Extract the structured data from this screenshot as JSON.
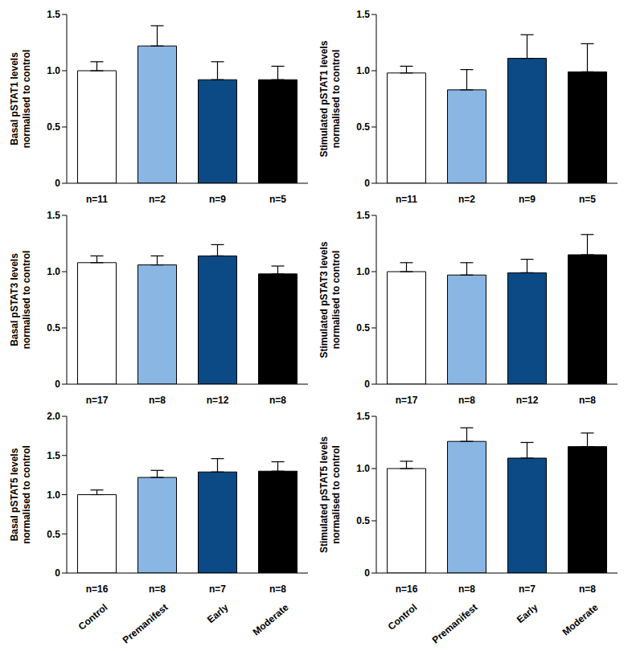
{
  "chart_data": [
    {
      "type": "bar",
      "y_label": [
        "Basal pSTAT1 levels",
        "normalised to control"
      ],
      "categories": [
        "n=11",
        "n=2",
        "n=9",
        "n=5"
      ],
      "values": [
        1.0,
        1.22,
        0.92,
        0.92
      ],
      "errors": [
        0.08,
        0.18,
        0.16,
        0.12
      ],
      "colors": [
        "#ffffff",
        "#8ab6e3",
        "#0b4a84",
        "#000000"
      ],
      "ylim": [
        0,
        1.5
      ],
      "yticks": [
        0,
        0.5,
        {
          "value": 1,
          "label": "1.0"
        },
        1.5
      ]
    },
    {
      "type": "bar",
      "y_label": [
        "Stimulated pSTAT1 levels",
        "normalised to control"
      ],
      "categories": [
        "n=11",
        "n=2",
        "n=9",
        "n=5"
      ],
      "values": [
        0.98,
        0.83,
        1.11,
        0.99
      ],
      "errors": [
        0.06,
        0.18,
        0.21,
        0.25
      ],
      "colors": [
        "#ffffff",
        "#8ab6e3",
        "#0b4a84",
        "#000000"
      ],
      "ylim": [
        0,
        1.5
      ],
      "yticks": [
        0,
        0.5,
        {
          "value": 1,
          "label": "1.0"
        },
        1.5
      ]
    },
    {
      "type": "bar",
      "y_label": [
        "Basal pSTAT3 levels",
        "normalised to control"
      ],
      "categories": [
        "n=17",
        "n=8",
        "n=12",
        "n=8"
      ],
      "values": [
        1.08,
        1.06,
        1.14,
        0.98
      ],
      "errors": [
        0.06,
        0.08,
        0.1,
        0.07
      ],
      "colors": [
        "#ffffff",
        "#8ab6e3",
        "#0b4a84",
        "#000000"
      ],
      "ylim": [
        0,
        1.5
      ],
      "yticks": [
        0,
        0.5,
        {
          "value": 1,
          "label": "1.0"
        },
        1.5
      ]
    },
    {
      "type": "bar",
      "y_label": [
        "Stimulated pSTAT3 levels",
        "normalised to control"
      ],
      "categories": [
        "n=17",
        "n=8",
        "n=12",
        "n=8"
      ],
      "values": [
        1.0,
        0.97,
        0.99,
        1.15
      ],
      "errors": [
        0.08,
        0.11,
        0.12,
        0.18
      ],
      "colors": [
        "#ffffff",
        "#8ab6e3",
        "#0b4a84",
        "#000000"
      ],
      "ylim": [
        0,
        1.5
      ],
      "yticks": [
        0,
        0.5,
        {
          "value": 1,
          "label": "1.0"
        },
        1.5
      ]
    },
    {
      "type": "bar",
      "y_label": [
        "Basal pSTAT5 levels",
        "normalised to control"
      ],
      "categories": [
        "n=16",
        "n=8",
        "n=7",
        "n=8"
      ],
      "group_labels": [
        "Control",
        "Premanifest",
        "Early",
        "Moderate"
      ],
      "values": [
        1.0,
        1.22,
        1.29,
        1.3
      ],
      "errors": [
        0.06,
        0.09,
        0.17,
        0.12
      ],
      "colors": [
        "#ffffff",
        "#8ab6e3",
        "#0b4a84",
        "#000000"
      ],
      "ylim": [
        0,
        2
      ],
      "yticks": [
        0,
        0.5,
        {
          "value": 1,
          "label": "1.0"
        },
        1.5,
        {
          "value": 2,
          "label": "2.0"
        }
      ]
    },
    {
      "type": "bar",
      "y_label": [
        "Stimulated pSTAT5 levels",
        "normalised to control"
      ],
      "categories": [
        "n=16",
        "n=8",
        "n=7",
        "n=8"
      ],
      "group_labels": [
        "Control",
        "Premanifest",
        "Early",
        "Moderate"
      ],
      "values": [
        1.0,
        1.26,
        1.1,
        1.21
      ],
      "errors": [
        0.07,
        0.13,
        0.15,
        0.13
      ],
      "colors": [
        "#ffffff",
        "#8ab6e3",
        "#0b4a84",
        "#000000"
      ],
      "ylim": [
        0,
        1.5
      ],
      "yticks": [
        0,
        0.5,
        {
          "value": 1,
          "label": "1.0"
        },
        1.5
      ]
    }
  ]
}
